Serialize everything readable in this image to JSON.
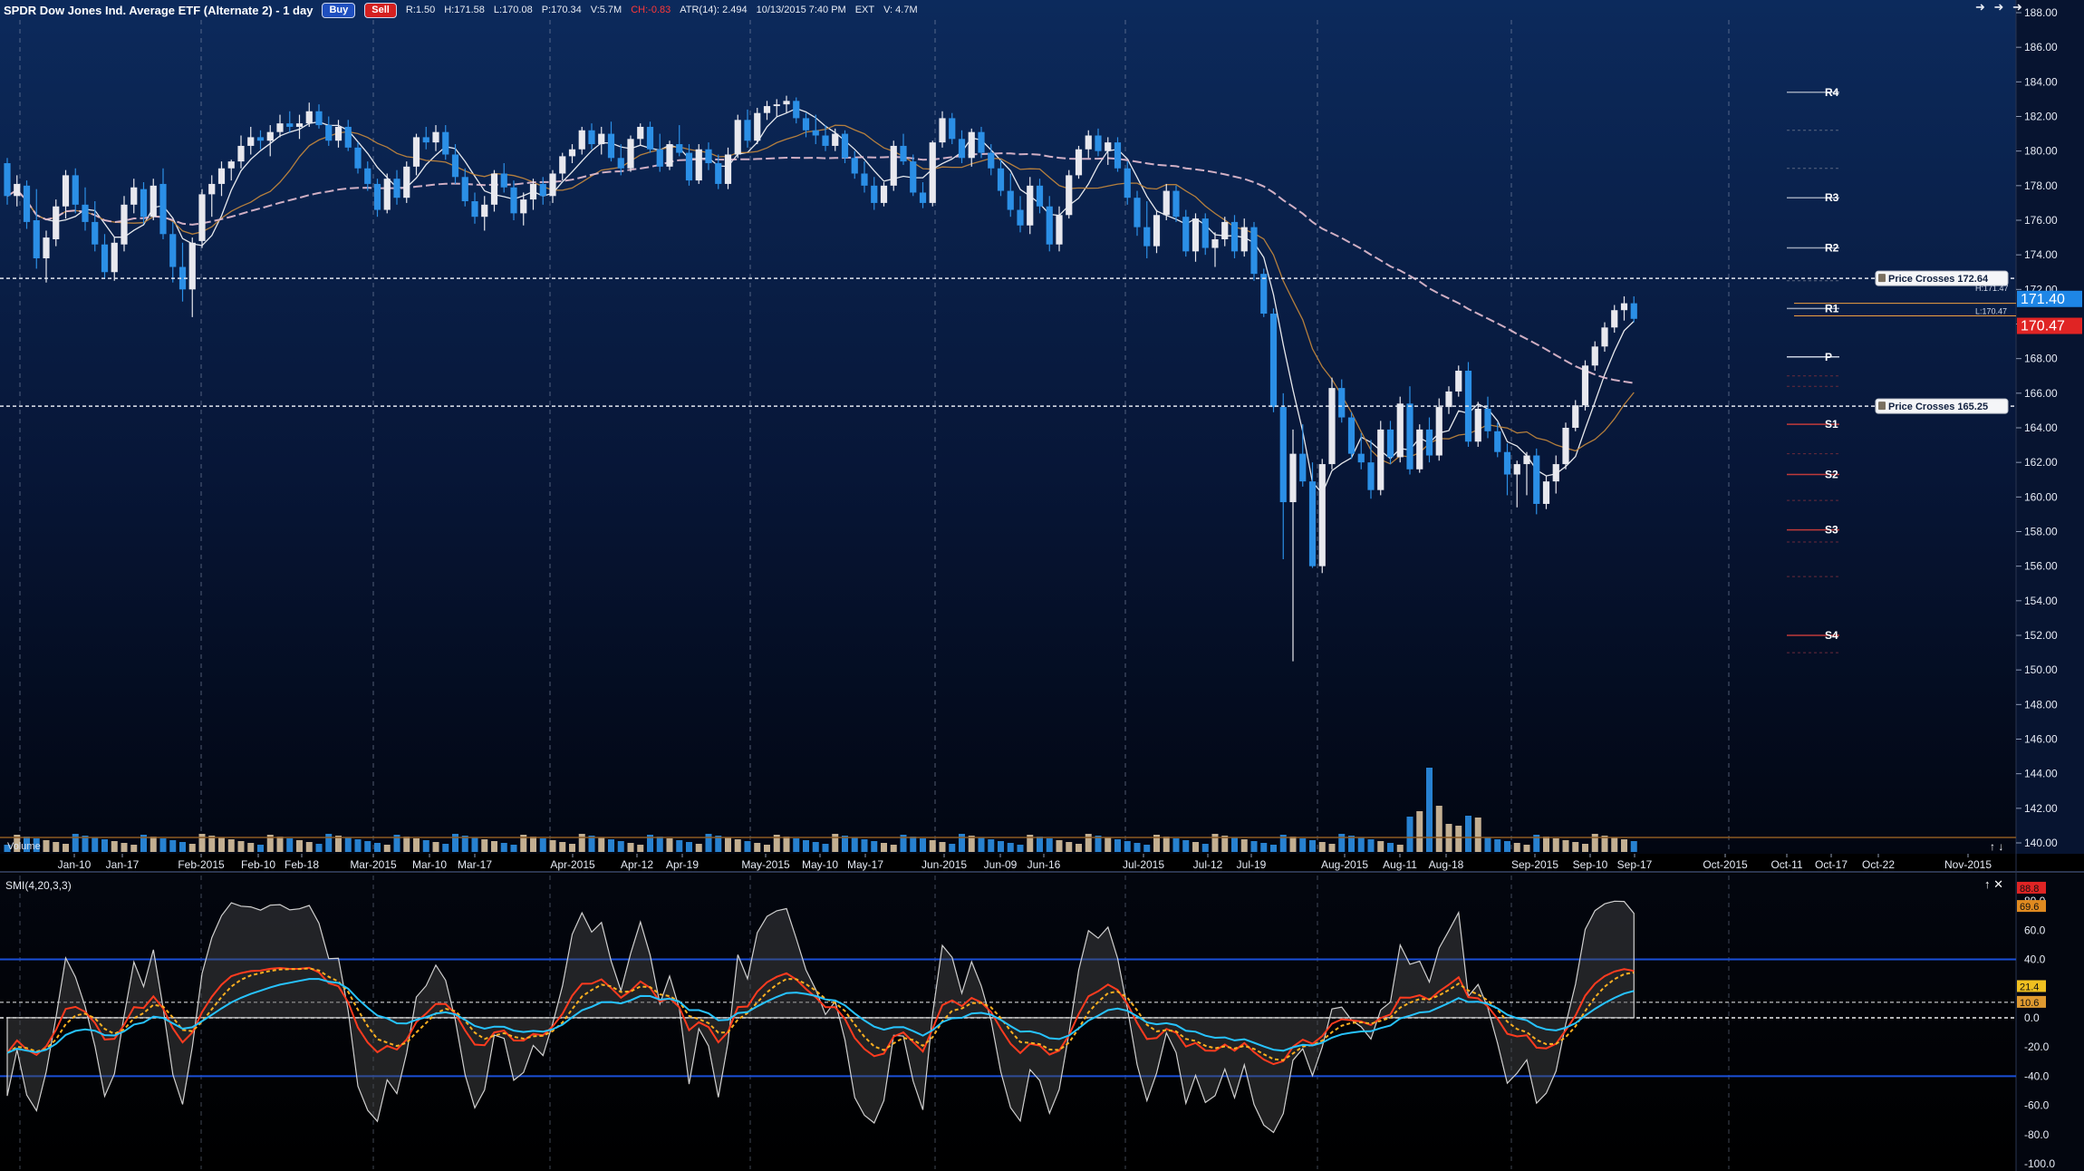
{
  "header": {
    "title": "SPDR Dow Jones Ind. Average ETF (Alternate 2) - 1 day",
    "buy_label": "Buy",
    "sell_label": "Sell",
    "stats": {
      "range": "R:1.50",
      "high": "H:171.58",
      "low": "L:170.08",
      "price": "P:170.34",
      "volume": "V:5.7M",
      "change": "CH:-0.83",
      "atr": "ATR(14): 2.494",
      "datetime": "10/13/2015 7:40 PM",
      "ext": "EXT",
      "ext_volume": "V: 4.7M"
    },
    "nav_arrows": "➜ ➜ ➜"
  },
  "price_axis": {
    "ticks": [
      "188.00",
      "186.00",
      "184.00",
      "182.00",
      "180.00",
      "178.00",
      "176.00",
      "174.00",
      "172.00",
      "170.00",
      "168.00",
      "166.00",
      "164.00",
      "162.00",
      "160.00",
      "158.00",
      "156.00",
      "154.00",
      "152.00",
      "150.00",
      "148.00",
      "146.00",
      "144.00",
      "142.00",
      "140.00"
    ],
    "last_price_tag": "171.40",
    "prev_price_tag": "170.47",
    "hi_label": "H:171.47",
    "lo_label": "L:170.47"
  },
  "price_cross_labels": [
    {
      "text": "Price Crosses 172.64",
      "value": 172.64
    },
    {
      "text": "Price Crosses 165.25",
      "value": 165.25
    }
  ],
  "pivots": [
    {
      "label": "R4",
      "value": 183.4
    },
    {
      "label": "R3",
      "value": 177.3
    },
    {
      "label": "R2",
      "value": 174.4
    },
    {
      "label": "R1",
      "value": 170.9
    },
    {
      "label": "P",
      "value": 168.1
    },
    {
      "label": "S1",
      "value": 164.2
    },
    {
      "label": "S2",
      "value": 161.3
    },
    {
      "label": "S3",
      "value": 158.1
    },
    {
      "label": "S4",
      "value": 152.0
    }
  ],
  "x_axis": {
    "labels": [
      "Jan-10",
      "Jan-17",
      "Feb-2015",
      "Feb-10",
      "Feb-18",
      "Mar-2015",
      "Mar-10",
      "Mar-17",
      "Apr-2015",
      "Apr-12",
      "Apr-19",
      "May-2015",
      "May-10",
      "May-17",
      "Jun-2015",
      "Jun-09",
      "Jun-16",
      "Jul-2015",
      "Jul-12",
      "Jul-19",
      "Aug-2015",
      "Aug-11",
      "Aug-18",
      "Sep-2015",
      "Sep-10",
      "Sep-17",
      "Oct-2015",
      "Oct-11",
      "Oct-17",
      "Oct-22",
      "Nov-2015"
    ]
  },
  "volume_label": "Volume",
  "smi": {
    "label": "SMI(4,20,3,3)",
    "axis_ticks": [
      "80.0",
      "60.0",
      "40.0",
      "20.0",
      "0.0",
      "-20.0",
      "-40.0",
      "-60.0",
      "-80.0",
      "-100.0"
    ],
    "tags": [
      "88.8",
      "69.6",
      "21.4",
      "10.6"
    ]
  },
  "colors": {
    "background_top": "#0c2a5c",
    "background_bottom": "#020611",
    "up_candle": "#e8e8ee",
    "down_candle": "#2b8fe6",
    "ma_fast": "#ffffff",
    "ma_mid": "#c88a3c",
    "ma_slow": "#e6bfd2",
    "smi_line": "#ff3b1f",
    "smi_signal": "#ffb020",
    "smi_cyan": "#27c3ff",
    "band_line": "#1a4fd8",
    "price_tag_up": "#1e86e6",
    "price_tag_down": "#e02424"
  },
  "chart_data": {
    "type": "candlestick",
    "interval": "1 day",
    "symbol_title": "SPDR Dow Jones Ind. Average ETF (Alternate 2) - 1 day",
    "ylim": [
      140,
      189
    ],
    "last": {
      "high": 171.58,
      "low": 170.08,
      "close": 170.34,
      "change": -0.83
    },
    "ohlc": [
      [
        179.3,
        179.6,
        176.9,
        177.4
      ],
      [
        177.4,
        178.6,
        176.8,
        178.1
      ],
      [
        178.0,
        178.3,
        175.5,
        175.9
      ],
      [
        176.0,
        177.8,
        173.2,
        173.8
      ],
      [
        173.8,
        175.4,
        172.4,
        175.0
      ],
      [
        174.9,
        177.2,
        174.5,
        176.8
      ],
      [
        176.8,
        178.9,
        176.1,
        178.6
      ],
      [
        178.6,
        179.0,
        176.4,
        176.9
      ],
      [
        176.9,
        177.9,
        175.4,
        175.9
      ],
      [
        175.9,
        177.1,
        174.2,
        174.6
      ],
      [
        174.6,
        175.2,
        172.6,
        173.0
      ],
      [
        173.0,
        175.0,
        172.5,
        174.7
      ],
      [
        174.6,
        177.4,
        174.2,
        176.9
      ],
      [
        176.9,
        178.4,
        176.4,
        177.9
      ],
      [
        177.8,
        178.2,
        175.8,
        176.2
      ],
      [
        176.2,
        178.4,
        176.0,
        178.0
      ],
      [
        178.1,
        179.0,
        174.9,
        175.2
      ],
      [
        175.2,
        175.9,
        172.4,
        173.3
      ],
      [
        173.3,
        174.7,
        171.3,
        172.0
      ],
      [
        172.0,
        175.0,
        170.4,
        174.7
      ],
      [
        174.8,
        177.8,
        174.4,
        177.5
      ],
      [
        177.5,
        178.6,
        176.2,
        178.1
      ],
      [
        178.1,
        179.4,
        177.4,
        179.0
      ],
      [
        179.0,
        179.5,
        178.3,
        179.4
      ],
      [
        179.4,
        180.9,
        179.0,
        180.3
      ],
      [
        180.3,
        181.4,
        179.8,
        180.8
      ],
      [
        180.8,
        181.2,
        180.1,
        180.6
      ],
      [
        180.6,
        181.5,
        179.7,
        181.1
      ],
      [
        181.1,
        182.1,
        180.8,
        181.6
      ],
      [
        181.6,
        182.3,
        181.1,
        181.4
      ],
      [
        181.4,
        182.1,
        180.7,
        181.6
      ],
      [
        181.6,
        182.8,
        181.4,
        182.3
      ],
      [
        182.3,
        182.7,
        181.3,
        181.5
      ],
      [
        181.5,
        182.0,
        180.3,
        180.6
      ],
      [
        180.6,
        181.8,
        180.2,
        181.4
      ],
      [
        181.4,
        181.8,
        180.0,
        180.2
      ],
      [
        180.2,
        180.5,
        178.7,
        179.0
      ],
      [
        179.0,
        179.4,
        177.7,
        178.1
      ],
      [
        178.1,
        178.4,
        176.2,
        176.6
      ],
      [
        176.6,
        178.7,
        176.4,
        178.4
      ],
      [
        178.4,
        178.9,
        176.9,
        177.3
      ],
      [
        177.3,
        179.4,
        177.0,
        179.1
      ],
      [
        179.1,
        181.0,
        178.6,
        180.8
      ],
      [
        180.8,
        181.4,
        180.1,
        180.5
      ],
      [
        180.5,
        181.5,
        180.0,
        181.1
      ],
      [
        181.1,
        181.5,
        179.5,
        179.8
      ],
      [
        179.8,
        180.4,
        178.1,
        178.5
      ],
      [
        178.5,
        179.0,
        176.8,
        177.1
      ],
      [
        177.1,
        177.6,
        175.8,
        176.2
      ],
      [
        176.2,
        177.4,
        175.4,
        176.9
      ],
      [
        176.9,
        178.9,
        176.5,
        178.7
      ],
      [
        178.7,
        179.3,
        177.6,
        177.9
      ],
      [
        177.9,
        178.3,
        176.0,
        176.4
      ],
      [
        176.4,
        177.6,
        175.7,
        177.2
      ],
      [
        177.2,
        178.4,
        176.6,
        178.1
      ],
      [
        178.1,
        178.5,
        176.9,
        177.4
      ],
      [
        177.4,
        178.9,
        177.0,
        178.7
      ],
      [
        178.7,
        179.9,
        178.3,
        179.7
      ],
      [
        179.7,
        180.4,
        179.3,
        180.1
      ],
      [
        180.1,
        181.4,
        179.8,
        181.2
      ],
      [
        181.2,
        181.6,
        180.1,
        180.4
      ],
      [
        180.4,
        181.4,
        179.8,
        181.0
      ],
      [
        181.0,
        181.7,
        179.4,
        179.6
      ],
      [
        179.6,
        180.4,
        178.6,
        179.0
      ],
      [
        179.0,
        180.9,
        178.8,
        180.7
      ],
      [
        180.7,
        181.6,
        180.3,
        181.4
      ],
      [
        181.4,
        181.7,
        179.9,
        180.1
      ],
      [
        180.1,
        181.0,
        178.8,
        179.1
      ],
      [
        179.1,
        180.6,
        178.9,
        180.4
      ],
      [
        180.4,
        181.5,
        179.7,
        179.9
      ],
      [
        179.9,
        180.4,
        178.0,
        178.3
      ],
      [
        178.3,
        180.4,
        178.1,
        180.1
      ],
      [
        180.1,
        180.5,
        178.9,
        179.3
      ],
      [
        179.3,
        179.8,
        177.8,
        178.1
      ],
      [
        178.1,
        180.2,
        177.8,
        179.8
      ],
      [
        179.8,
        182.1,
        179.6,
        181.8
      ],
      [
        181.8,
        182.4,
        180.2,
        180.6
      ],
      [
        180.6,
        182.5,
        180.4,
        182.2
      ],
      [
        182.2,
        182.9,
        181.8,
        182.6
      ],
      [
        182.6,
        183.0,
        182.0,
        182.7
      ],
      [
        182.7,
        183.2,
        182.2,
        182.9
      ],
      [
        182.9,
        183.1,
        181.6,
        181.9
      ],
      [
        181.9,
        182.2,
        180.8,
        181.2
      ],
      [
        181.2,
        182.1,
        180.4,
        180.9
      ],
      [
        180.9,
        181.5,
        180.0,
        180.3
      ],
      [
        180.3,
        181.3,
        180.0,
        181.0
      ],
      [
        181.0,
        181.2,
        179.3,
        179.6
      ],
      [
        179.6,
        180.0,
        178.4,
        178.7
      ],
      [
        178.7,
        179.4,
        177.6,
        178.0
      ],
      [
        178.0,
        178.5,
        176.6,
        177.0
      ],
      [
        177.0,
        178.2,
        176.8,
        178.0
      ],
      [
        178.0,
        180.6,
        177.7,
        180.3
      ],
      [
        180.3,
        181.0,
        179.2,
        179.4
      ],
      [
        179.4,
        179.8,
        177.4,
        177.6
      ],
      [
        177.6,
        178.2,
        176.7,
        177.0
      ],
      [
        177.0,
        180.6,
        176.8,
        180.5
      ],
      [
        180.5,
        182.3,
        180.2,
        181.9
      ],
      [
        181.9,
        182.2,
        180.4,
        180.7
      ],
      [
        180.7,
        181.2,
        179.3,
        179.6
      ],
      [
        179.6,
        181.3,
        179.1,
        181.1
      ],
      [
        181.1,
        181.4,
        179.6,
        179.9
      ],
      [
        179.9,
        180.4,
        178.6,
        179.0
      ],
      [
        179.0,
        179.5,
        177.4,
        177.7
      ],
      [
        177.7,
        178.7,
        176.2,
        176.6
      ],
      [
        176.6,
        177.4,
        175.3,
        175.7
      ],
      [
        175.7,
        178.5,
        175.2,
        178.0
      ],
      [
        178.0,
        178.4,
        176.4,
        176.8
      ],
      [
        176.8,
        177.4,
        174.2,
        174.6
      ],
      [
        174.6,
        176.8,
        174.2,
        176.3
      ],
      [
        176.3,
        178.9,
        176.1,
        178.6
      ],
      [
        178.6,
        180.3,
        178.4,
        180.1
      ],
      [
        180.1,
        181.2,
        179.6,
        180.9
      ],
      [
        180.9,
        181.3,
        179.7,
        180.0
      ],
      [
        180.0,
        180.8,
        179.2,
        180.5
      ],
      [
        180.5,
        180.8,
        178.8,
        179.0
      ],
      [
        179.0,
        179.4,
        176.9,
        177.3
      ],
      [
        177.3,
        177.7,
        175.1,
        175.6
      ],
      [
        175.6,
        177.1,
        173.8,
        174.5
      ],
      [
        174.5,
        176.6,
        174.1,
        176.3
      ],
      [
        176.3,
        178.1,
        176.0,
        177.7
      ],
      [
        177.7,
        178.0,
        175.9,
        176.2
      ],
      [
        176.2,
        176.6,
        173.9,
        174.2
      ],
      [
        174.2,
        176.4,
        173.6,
        176.1
      ],
      [
        176.1,
        176.4,
        174.0,
        174.4
      ],
      [
        174.4,
        175.3,
        173.3,
        174.9
      ],
      [
        174.9,
        176.2,
        174.5,
        175.9
      ],
      [
        175.9,
        176.3,
        173.8,
        174.2
      ],
      [
        174.2,
        176.1,
        173.9,
        175.6
      ],
      [
        175.6,
        175.9,
        172.5,
        172.9
      ],
      [
        172.9,
        173.2,
        170.4,
        170.6
      ],
      [
        170.6,
        170.9,
        164.9,
        165.2
      ],
      [
        165.2,
        166.0,
        156.4,
        159.7
      ],
      [
        159.7,
        163.9,
        150.5,
        162.5
      ],
      [
        162.5,
        164.2,
        160.6,
        160.9
      ],
      [
        160.9,
        162.0,
        155.9,
        156.0
      ],
      [
        156.0,
        162.2,
        155.6,
        161.9
      ],
      [
        161.9,
        166.9,
        161.6,
        166.3
      ],
      [
        166.3,
        166.8,
        164.3,
        164.6
      ],
      [
        164.6,
        164.9,
        162.2,
        162.5
      ],
      [
        162.5,
        163.7,
        161.6,
        162.0
      ],
      [
        162.0,
        163.3,
        159.9,
        160.4
      ],
      [
        160.4,
        164.4,
        160.1,
        163.9
      ],
      [
        163.9,
        164.4,
        161.9,
        162.3
      ],
      [
        162.3,
        165.8,
        162.0,
        165.4
      ],
      [
        165.4,
        166.4,
        161.3,
        161.6
      ],
      [
        161.6,
        164.2,
        161.4,
        163.9
      ],
      [
        163.9,
        164.6,
        162.0,
        162.4
      ],
      [
        162.4,
        165.7,
        162.1,
        165.2
      ],
      [
        165.2,
        166.4,
        164.8,
        166.1
      ],
      [
        166.1,
        167.6,
        165.8,
        167.3
      ],
      [
        167.3,
        167.8,
        162.9,
        163.2
      ],
      [
        163.2,
        165.5,
        162.9,
        165.1
      ],
      [
        165.1,
        165.8,
        163.4,
        163.8
      ],
      [
        163.8,
        164.3,
        162.3,
        162.6
      ],
      [
        162.6,
        163.1,
        160.1,
        161.3
      ],
      [
        161.3,
        162.1,
        159.4,
        161.9
      ],
      [
        161.9,
        162.6,
        160.1,
        162.4
      ],
      [
        162.4,
        162.8,
        159.0,
        159.6
      ],
      [
        159.6,
        161.2,
        159.3,
        160.9
      ],
      [
        160.9,
        162.4,
        160.2,
        161.9
      ],
      [
        161.9,
        164.3,
        161.6,
        164.0
      ],
      [
        164.0,
        165.6,
        163.8,
        165.3
      ],
      [
        165.3,
        167.9,
        165.0,
        167.6
      ],
      [
        167.6,
        169.0,
        167.3,
        168.7
      ],
      [
        168.7,
        170.1,
        168.4,
        169.8
      ],
      [
        169.8,
        171.1,
        169.5,
        170.8
      ],
      [
        170.8,
        171.6,
        170.2,
        171.2
      ],
      [
        171.2,
        171.6,
        170.1,
        170.3
      ]
    ],
    "moving_averages": [
      {
        "period_label": "fast",
        "color": "#ffffff"
      },
      {
        "period_label": "mid",
        "color": "#c88a3c"
      },
      {
        "period_label": "slow",
        "color": "#e6bfd2"
      }
    ],
    "smi": {
      "label": "SMI(4,20,3,3)",
      "ylim": [
        -100,
        90
      ],
      "upper_band": 40,
      "lower_band": -40
    }
  }
}
